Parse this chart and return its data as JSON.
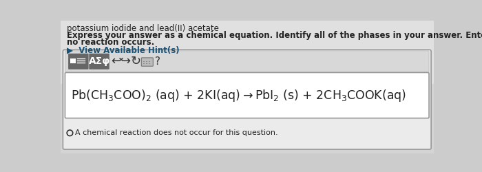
{
  "title_text": "potassium iodide and lead(II) acetate",
  "instruction_line1": "Express your answer as a chemical equation. Identify all of the phases in your answer. Enter NOREACTION if",
  "instruction_line2": "no reaction occurs.",
  "hint_text": "▶  View Available Hint(s)",
  "toolbar_symbols": "AΣφ",
  "checkbox_text": "A chemical reaction does not occur for this question.",
  "bg_color": "#e8e8e8",
  "white": "#ffffff",
  "page_bg": "#d8d8d8",
  "border_color": "#aaaaaa",
  "text_color": "#222222",
  "hint_color": "#1a5276",
  "toolbar_bg": "#c8c8c8",
  "btn_bg": "#666666",
  "input_bg": "#ffffff",
  "title_fontsize": 8.5,
  "instruction_fontsize": 8.5,
  "hint_fontsize": 8.5,
  "eq_fontsize": 12.5,
  "checkbox_fontsize": 8.0
}
